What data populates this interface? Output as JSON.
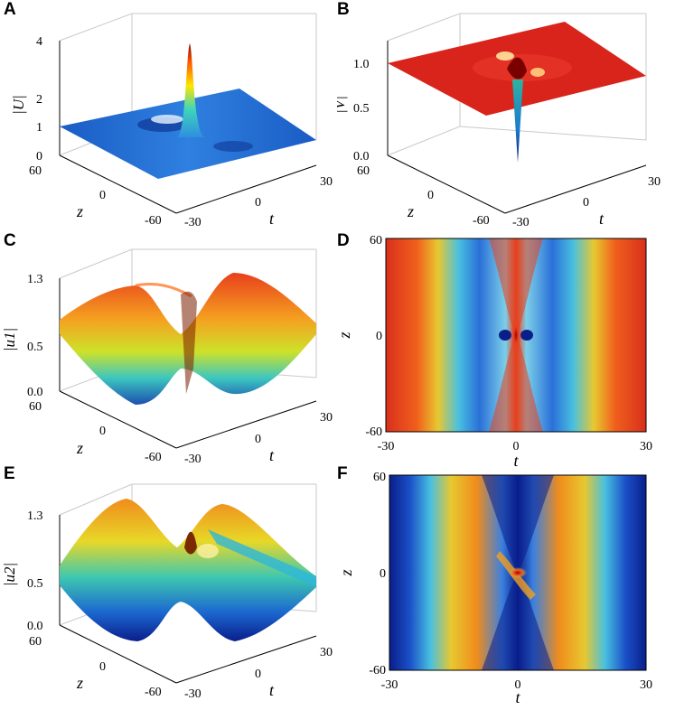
{
  "panels": {
    "A": {
      "letter": "A",
      "zlabel": "|U|",
      "zticks": [
        "4",
        "2",
        "1",
        "0"
      ],
      "yticks": [
        "60",
        "0",
        "-60"
      ],
      "xticks": [
        "-30",
        "0",
        "30"
      ],
      "ylabel": "z",
      "xlabel": "t"
    },
    "B": {
      "letter": "B",
      "zlabel": "|V|",
      "zticks": [
        "1.0",
        "0.5",
        "0.0"
      ],
      "yticks": [
        "60",
        "0",
        "-60"
      ],
      "xticks": [
        "-30",
        "0",
        "30"
      ],
      "ylabel": "z",
      "xlabel": "t"
    },
    "C": {
      "letter": "C",
      "zlabel": "|u1|",
      "zticks": [
        "1.3",
        "0.5",
        "0.0"
      ],
      "yticks": [
        "60",
        "0",
        "-60"
      ],
      "xticks": [
        "-30",
        "0",
        "30"
      ],
      "ylabel": "z",
      "xlabel": "t"
    },
    "D": {
      "letter": "D",
      "yticks": [
        "60",
        "0",
        "-60"
      ],
      "xticks": [
        "-30",
        "0",
        "30"
      ],
      "ylabel": "z",
      "xlabel": "t"
    },
    "E": {
      "letter": "E",
      "zlabel": "|u2|",
      "zticks": [
        "1.3",
        "0.5",
        "0.0"
      ],
      "yticks": [
        "60",
        "0",
        "-60"
      ],
      "xticks": [
        "-30",
        "0",
        "30"
      ],
      "ylabel": "z",
      "xlabel": "t"
    },
    "F": {
      "letter": "F",
      "yticks": [
        "60",
        "0",
        "-60"
      ],
      "xticks": [
        "-30",
        "0",
        "30"
      ],
      "ylabel": "z",
      "xlabel": "t"
    }
  },
  "chart_data": [
    {
      "panel": "A",
      "type": "surface",
      "x_range": [
        -30,
        30
      ],
      "y_range": [
        -60,
        60
      ],
      "zlim": [
        0,
        4
      ],
      "features": {
        "background": 1.0,
        "peak_height": 3.8,
        "peak_location": [
          0,
          0
        ]
      },
      "color": "#1f63c8"
    },
    {
      "panel": "B",
      "type": "surface",
      "x_range": [
        -30,
        30
      ],
      "y_range": [
        -60,
        60
      ],
      "zlim": [
        0,
        1.0
      ],
      "features": {
        "background": 1.0,
        "dip_min": 0.0,
        "dip_location": [
          0,
          0
        ]
      },
      "color": "#d9261c"
    },
    {
      "panel": "C",
      "type": "surface",
      "x_range": [
        -30,
        30
      ],
      "y_range": [
        -60,
        60
      ],
      "zlim": [
        0,
        1.3
      ],
      "features": {
        "periodic_in_t": true,
        "max": 1.0,
        "min": 0.4
      }
    },
    {
      "panel": "D",
      "type": "heatmap",
      "x_range": [
        -30,
        30
      ],
      "y_range": [
        -60,
        60
      ],
      "colormap": "jet",
      "bands_t": [
        -30,
        -20,
        -10,
        0,
        10,
        20,
        30
      ]
    },
    {
      "panel": "E",
      "type": "surface",
      "x_range": [
        -30,
        30
      ],
      "y_range": [
        -60,
        60
      ],
      "zlim": [
        0,
        1.3
      ],
      "features": {
        "periodic_in_t": true,
        "max": 1.0,
        "min": 0.1
      }
    },
    {
      "panel": "F",
      "type": "heatmap",
      "x_range": [
        -30,
        30
      ],
      "y_range": [
        -60,
        60
      ],
      "colormap": "jet"
    }
  ]
}
